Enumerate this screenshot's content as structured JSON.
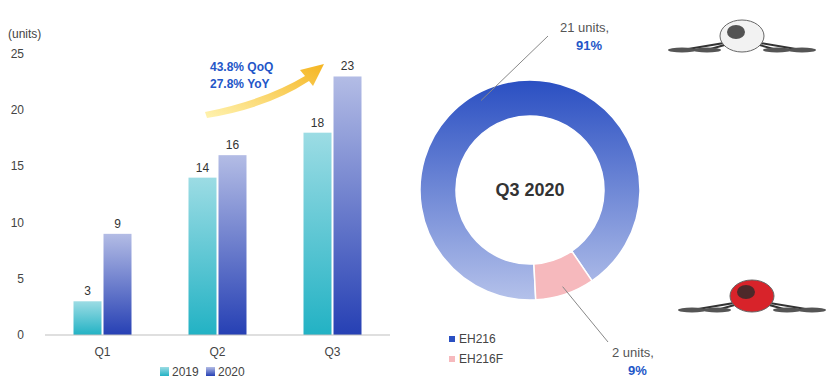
{
  "chart_data": [
    {
      "type": "bar",
      "ylabel": "(units)",
      "categories": [
        "Q1",
        "Q2",
        "Q3"
      ],
      "series": [
        {
          "name": "2019",
          "color": "#22b2c4",
          "values": [
            3,
            14,
            18
          ]
        },
        {
          "name": "2020",
          "color": "#2640b4",
          "values": [
            9,
            16,
            23
          ]
        }
      ],
      "ylim": [
        0,
        25
      ],
      "yticks": [
        0,
        5,
        10,
        15,
        20,
        25
      ],
      "grid": false,
      "data_labels": true,
      "legend": "bottom",
      "annotations": [
        "43.8% QoQ",
        "27.8% YoY"
      ]
    },
    {
      "type": "donut",
      "title": "Q3 2020",
      "categories": [
        "EH216",
        "EH216F"
      ],
      "values": [
        21,
        2
      ],
      "value_labels": [
        "21 units,",
        "2 units,"
      ],
      "percentages": [
        91,
        9
      ],
      "percentage_labels": [
        "91%",
        "9%"
      ],
      "colors": [
        "#2a4fc2",
        "#f6b9bd"
      ],
      "legend": "bottom-left"
    }
  ]
}
